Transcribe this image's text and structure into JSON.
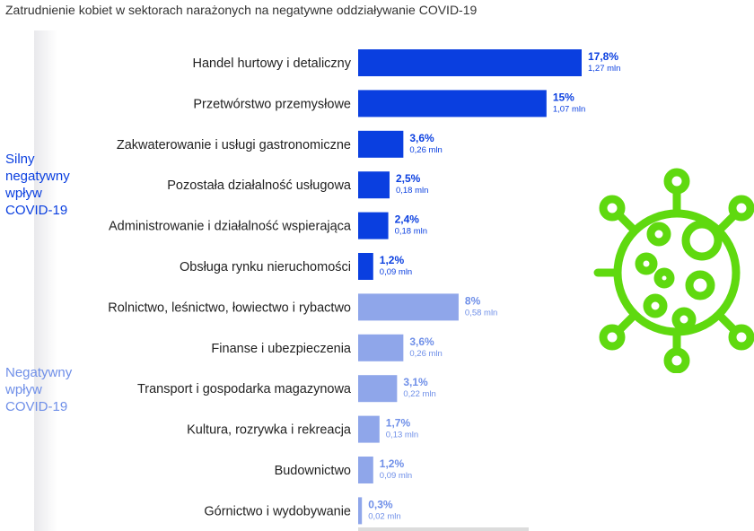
{
  "title": "Zatrudnienie kobiet w sektorach narażonych na negatywne oddziaływanie COVID-19",
  "groups": [
    {
      "label": "Silny negatywny wpływ COVID-19",
      "lines": [
        "Silny",
        "negatywny",
        "wpływ",
        "COVID-19"
      ],
      "color": "#0a3fe0"
    },
    {
      "label": "Negatywny wpływ COVID-19",
      "lines": [
        "Negatywny",
        "wpływ",
        "COVID-19"
      ],
      "color": "#6f8fe8"
    }
  ],
  "colors": {
    "strong": "#0a3fe0",
    "moderate": "#8fa6ea",
    "virus": "#5fd90f"
  },
  "icon": "virus-icon",
  "chart_data": {
    "type": "bar",
    "orientation": "horizontal",
    "title": "Zatrudnienie kobiet w sektorach narażonych na negatywne oddziaływanie COVID-19",
    "unit": "%",
    "xlim": [
      0,
      17.8
    ],
    "categories": [
      "Handel hurtowy i detaliczny",
      "Przetwórstwo przemysłowe",
      "Zakwaterowanie i usługi gastronomiczne",
      "Pozostała działalność usługowa",
      "Administrowanie i działalność wspierająca",
      "Obsługa rynku nieruchomości",
      "Rolnictwo, leśnictwo, łowiectwo i rybactwo",
      "Finanse i ubezpieczenia",
      "Transport i gospodarka magazynowa",
      "Kultura, rozrywka i rekreacja",
      "Budownictwo",
      "Górnictwo i wydobywanie"
    ],
    "values": [
      17.8,
      15,
      3.6,
      2.5,
      2.4,
      1.2,
      8,
      3.6,
      3.1,
      1.7,
      1.2,
      0.3
    ],
    "value_labels": [
      "17,8%",
      "15%",
      "3,6%",
      "2,5%",
      "2,4%",
      "1,2%",
      "8%",
      "3,6%",
      "3,1%",
      "1,7%",
      "1,2%",
      "0,3%"
    ],
    "secondary_labels": [
      "1,27 mln",
      "1,07 mln",
      "0,26 mln",
      "0,18 mln",
      "0,18 mln",
      "0,09 mln",
      "0,58 mln",
      "0,26 mln",
      "0,22 mln",
      "0,13 mln",
      "0,09 mln",
      "0,02 mln"
    ],
    "group_index": [
      0,
      0,
      0,
      0,
      0,
      0,
      1,
      1,
      1,
      1,
      1,
      1
    ]
  }
}
